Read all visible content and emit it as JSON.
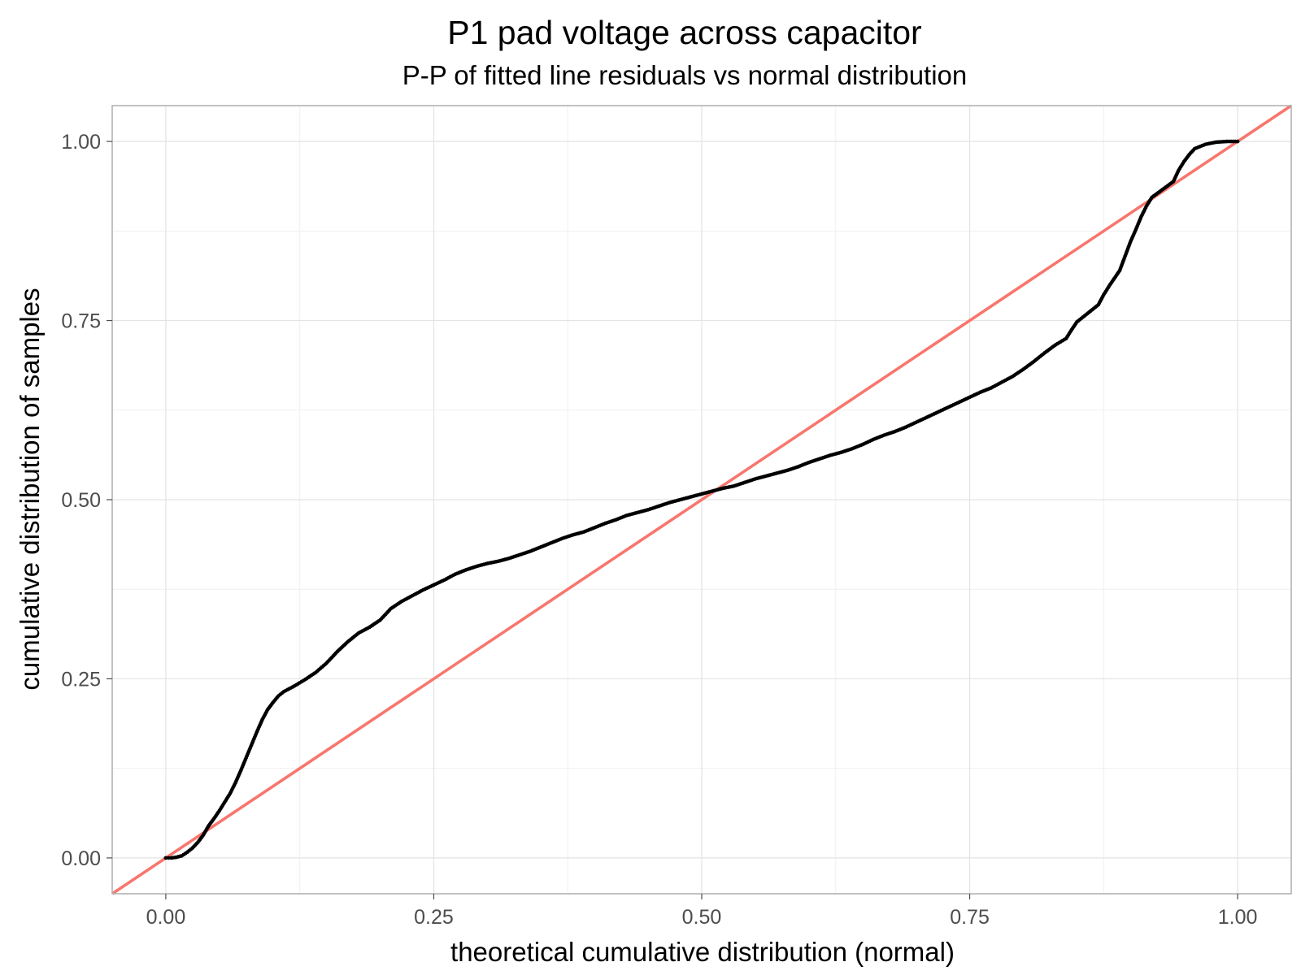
{
  "chart_data": {
    "type": "scatter",
    "title": "P1 pad voltage across capacitor",
    "subtitle": "P-P of fitted line residuals vs normal distribution",
    "xlabel": "theoretical cumulative distribution (normal)",
    "ylabel": "cumulative distribution of samples",
    "xlim": [
      -0.05,
      1.05
    ],
    "ylim": [
      -0.05,
      1.05
    ],
    "x_ticks": [
      0.0,
      0.25,
      0.5,
      0.75,
      1.0
    ],
    "x_tick_labels": [
      "0.00",
      "0.25",
      "0.50",
      "0.75",
      "1.00"
    ],
    "y_ticks": [
      0.0,
      0.25,
      0.5,
      0.75,
      1.0
    ],
    "y_tick_labels": [
      "0.00",
      "0.25",
      "0.50",
      "0.75",
      "1.00"
    ],
    "grid": true,
    "point_color": "#000000",
    "reference_line": {
      "slope": 1,
      "intercept": 0,
      "color": "#F8766D"
    },
    "series": [
      {
        "points": [
          [
            0.0,
            0.0
          ],
          [
            0.005,
            0.0
          ],
          [
            0.01,
            0.001
          ],
          [
            0.015,
            0.003
          ],
          [
            0.02,
            0.008
          ],
          [
            0.025,
            0.014
          ],
          [
            0.03,
            0.022
          ],
          [
            0.035,
            0.032
          ],
          [
            0.04,
            0.045
          ],
          [
            0.045,
            0.055
          ],
          [
            0.05,
            0.066
          ],
          [
            0.055,
            0.078
          ],
          [
            0.06,
            0.09
          ],
          [
            0.065,
            0.105
          ],
          [
            0.07,
            0.122
          ],
          [
            0.075,
            0.14
          ],
          [
            0.08,
            0.158
          ],
          [
            0.085,
            0.176
          ],
          [
            0.09,
            0.193
          ],
          [
            0.095,
            0.207
          ],
          [
            0.1,
            0.217
          ],
          [
            0.105,
            0.226
          ],
          [
            0.11,
            0.232
          ],
          [
            0.12,
            0.24
          ],
          [
            0.13,
            0.249
          ],
          [
            0.14,
            0.259
          ],
          [
            0.15,
            0.272
          ],
          [
            0.16,
            0.288
          ],
          [
            0.17,
            0.302
          ],
          [
            0.18,
            0.314
          ],
          [
            0.19,
            0.322
          ],
          [
            0.2,
            0.332
          ],
          [
            0.21,
            0.348
          ],
          [
            0.22,
            0.358
          ],
          [
            0.23,
            0.366
          ],
          [
            0.24,
            0.374
          ],
          [
            0.25,
            0.381
          ],
          [
            0.26,
            0.388
          ],
          [
            0.27,
            0.396
          ],
          [
            0.28,
            0.402
          ],
          [
            0.29,
            0.407
          ],
          [
            0.3,
            0.411
          ],
          [
            0.31,
            0.414
          ],
          [
            0.32,
            0.418
          ],
          [
            0.33,
            0.423
          ],
          [
            0.34,
            0.428
          ],
          [
            0.35,
            0.434
          ],
          [
            0.36,
            0.44
          ],
          [
            0.37,
            0.446
          ],
          [
            0.38,
            0.451
          ],
          [
            0.39,
            0.455
          ],
          [
            0.4,
            0.461
          ],
          [
            0.41,
            0.467
          ],
          [
            0.42,
            0.472
          ],
          [
            0.43,
            0.478
          ],
          [
            0.44,
            0.482
          ],
          [
            0.45,
            0.486
          ],
          [
            0.46,
            0.491
          ],
          [
            0.47,
            0.496
          ],
          [
            0.48,
            0.5
          ],
          [
            0.49,
            0.504
          ],
          [
            0.5,
            0.508
          ],
          [
            0.51,
            0.512
          ],
          [
            0.52,
            0.516
          ],
          [
            0.53,
            0.519
          ],
          [
            0.54,
            0.524
          ],
          [
            0.55,
            0.529
          ],
          [
            0.56,
            0.533
          ],
          [
            0.57,
            0.537
          ],
          [
            0.58,
            0.541
          ],
          [
            0.59,
            0.546
          ],
          [
            0.6,
            0.552
          ],
          [
            0.61,
            0.557
          ],
          [
            0.62,
            0.562
          ],
          [
            0.63,
            0.566
          ],
          [
            0.64,
            0.571
          ],
          [
            0.65,
            0.577
          ],
          [
            0.66,
            0.584
          ],
          [
            0.67,
            0.59
          ],
          [
            0.68,
            0.595
          ],
          [
            0.69,
            0.601
          ],
          [
            0.7,
            0.608
          ],
          [
            0.71,
            0.615
          ],
          [
            0.72,
            0.622
          ],
          [
            0.73,
            0.629
          ],
          [
            0.74,
            0.636
          ],
          [
            0.75,
            0.643
          ],
          [
            0.76,
            0.65
          ],
          [
            0.77,
            0.656
          ],
          [
            0.78,
            0.664
          ],
          [
            0.79,
            0.672
          ],
          [
            0.8,
            0.682
          ],
          [
            0.81,
            0.693
          ],
          [
            0.82,
            0.705
          ],
          [
            0.83,
            0.716
          ],
          [
            0.84,
            0.725
          ],
          [
            0.845,
            0.737
          ],
          [
            0.85,
            0.748
          ],
          [
            0.86,
            0.76
          ],
          [
            0.87,
            0.772
          ],
          [
            0.875,
            0.786
          ],
          [
            0.88,
            0.798
          ],
          [
            0.89,
            0.82
          ],
          [
            0.895,
            0.84
          ],
          [
            0.9,
            0.86
          ],
          [
            0.905,
            0.877
          ],
          [
            0.91,
            0.895
          ],
          [
            0.915,
            0.91
          ],
          [
            0.92,
            0.922
          ],
          [
            0.93,
            0.933
          ],
          [
            0.94,
            0.944
          ],
          [
            0.945,
            0.96
          ],
          [
            0.95,
            0.972
          ],
          [
            0.955,
            0.982
          ],
          [
            0.96,
            0.99
          ],
          [
            0.97,
            0.996
          ],
          [
            0.98,
            0.999
          ],
          [
            0.99,
            1.0
          ],
          [
            1.0,
            1.0
          ]
        ]
      }
    ]
  }
}
